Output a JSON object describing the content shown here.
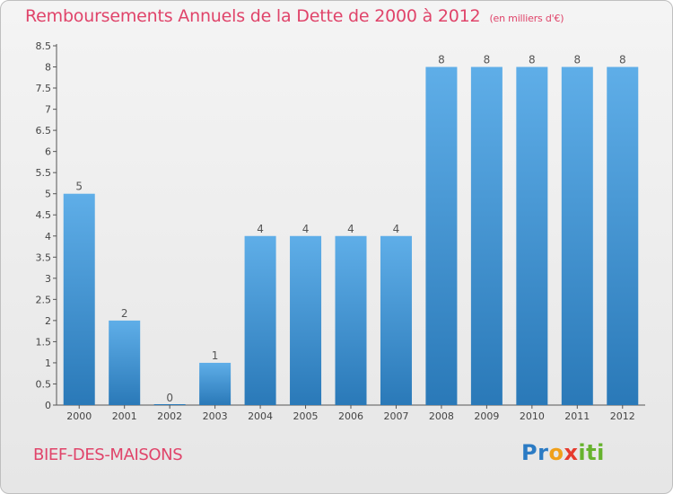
{
  "header": {
    "title": "Remboursements Annuels de la Dette de 2000 à 2012",
    "unit": "(en milliers d'€)"
  },
  "footer": {
    "town": "BIEF-DES-MAISONS",
    "logo_letters": [
      "P",
      "r",
      "o",
      "x",
      "i",
      "ti"
    ]
  },
  "colors": {
    "title": "#e0446a",
    "bar_top": "#5faee8",
    "bar_bottom": "#2a79b8"
  },
  "chart_data": {
    "type": "bar",
    "title": "Remboursements Annuels de la Dette de 2000 à 2012",
    "categories": [
      "2000",
      "2001",
      "2002",
      "2003",
      "2004",
      "2005",
      "2006",
      "2007",
      "2008",
      "2009",
      "2010",
      "2011",
      "2012"
    ],
    "values": [
      5,
      2,
      0,
      1,
      4,
      4,
      4,
      4,
      8,
      8,
      8,
      8,
      8
    ],
    "value_labels": [
      "5",
      "2",
      "0",
      "1",
      "4",
      "4",
      "4",
      "4",
      "8",
      "8",
      "8",
      "8",
      "8"
    ],
    "y_ticks": [
      "0",
      "0.5",
      "1",
      "1.5",
      "2",
      "2.5",
      "3",
      "3.5",
      "4",
      "4.5",
      "5",
      "5.5",
      "6",
      "6.5",
      "7",
      "7.5",
      "8",
      "8.5"
    ],
    "ylim": [
      0,
      8.5
    ],
    "xlabel": "",
    "ylabel": "",
    "grid": false
  }
}
